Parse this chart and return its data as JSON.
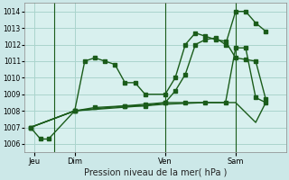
{
  "background_color": "#cce8e8",
  "plot_bg_color": "#d8f0ee",
  "grid_color": "#aad4cc",
  "line_color": "#1a5c1a",
  "title": "Pression niveau de la mer( hPa )",
  "ylim": [
    1005.5,
    1014.5
  ],
  "xlim": [
    0,
    13.0
  ],
  "yticks": [
    1006,
    1007,
    1008,
    1009,
    1010,
    1011,
    1012,
    1013,
    1014
  ],
  "day_labels": [
    "Jeu",
    "Dim",
    "Ven",
    "Sam"
  ],
  "day_positions": [
    0.5,
    2.5,
    7.0,
    10.5
  ],
  "vline_positions": [
    1.5,
    7.0,
    10.5
  ],
  "series1_x": [
    0.3,
    0.8,
    1.2,
    2.5,
    3.0,
    3.5,
    4.0,
    4.5,
    5.0,
    5.5,
    6.0,
    7.0,
    7.5,
    8.0,
    8.5,
    9.0,
    9.5,
    10.0,
    10.5,
    11.0,
    11.5,
    12.0
  ],
  "series1_y": [
    1007.0,
    1006.3,
    1006.3,
    1008.0,
    1011.0,
    1011.2,
    1011.0,
    1010.8,
    1009.7,
    1009.7,
    1009.0,
    1009.0,
    1010.0,
    1012.0,
    1012.7,
    1012.5,
    1012.3,
    1012.2,
    1011.2,
    1011.1,
    1011.0,
    1008.7
  ],
  "series2_x": [
    0.3,
    2.5,
    3.5,
    5.0,
    6.0,
    7.0,
    7.5,
    8.0,
    8.5,
    9.0,
    9.5,
    10.0,
    10.5,
    11.0,
    11.5,
    12.0
  ],
  "series2_y": [
    1007.0,
    1008.0,
    1008.2,
    1008.3,
    1008.4,
    1008.5,
    1009.2,
    1010.2,
    1012.0,
    1012.3,
    1012.4,
    1012.0,
    1014.0,
    1014.0,
    1013.3,
    1012.8
  ],
  "series3_x": [
    0.3,
    2.5,
    5.0,
    6.0,
    7.0,
    8.0,
    9.0,
    10.0,
    10.5,
    11.0,
    11.5,
    12.0
  ],
  "series3_y": [
    1007.0,
    1008.0,
    1008.3,
    1008.3,
    1008.5,
    1008.5,
    1008.5,
    1008.5,
    1011.8,
    1011.8,
    1008.8,
    1008.5
  ],
  "series4_x": [
    0.3,
    2.5,
    7.0,
    9.0,
    10.0,
    10.5,
    11.5,
    12.0
  ],
  "series4_y": [
    1007.0,
    1008.0,
    1008.4,
    1008.5,
    1008.5,
    1008.5,
    1007.3,
    1008.5
  ]
}
